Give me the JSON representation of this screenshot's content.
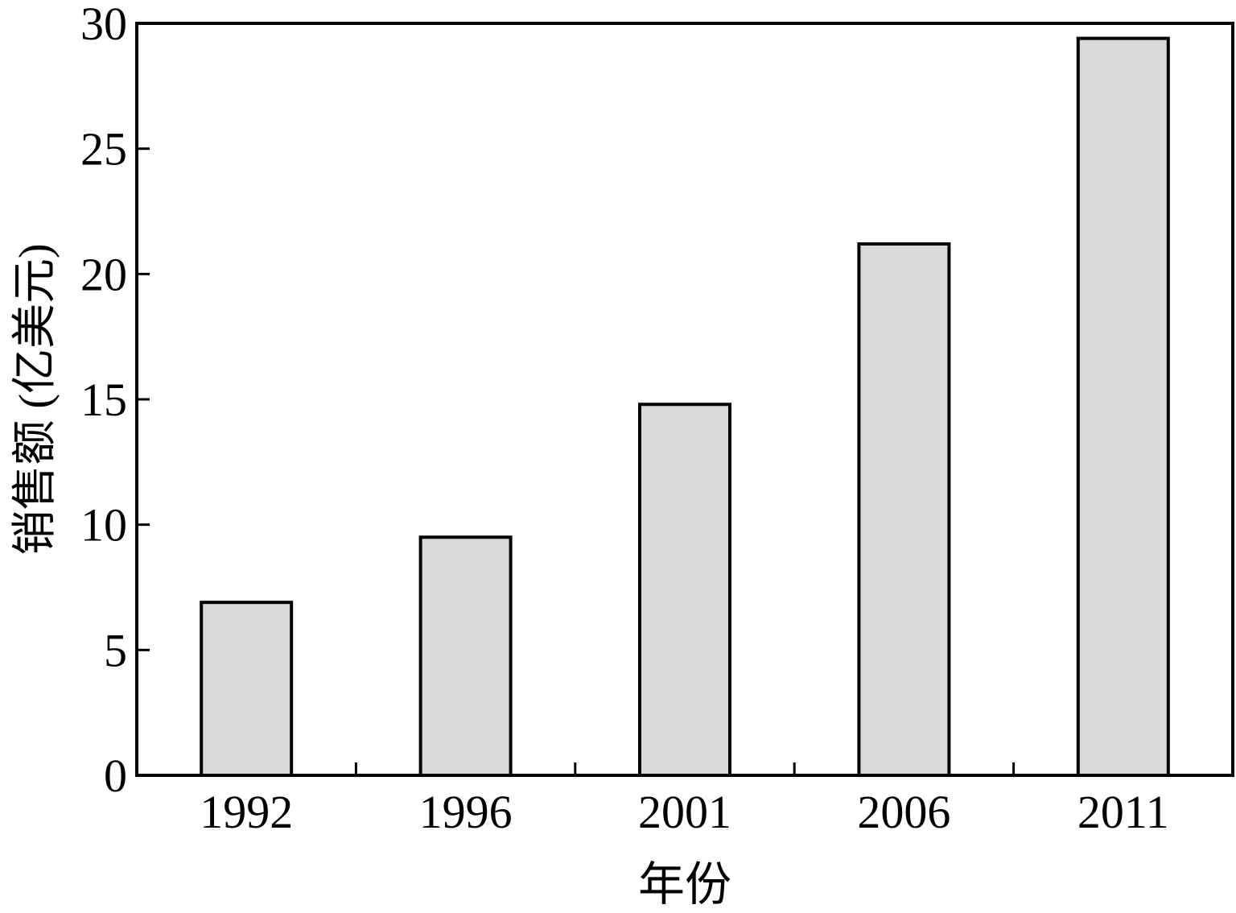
{
  "chart_data": {
    "type": "bar",
    "categories": [
      "1992",
      "1996",
      "2001",
      "2006",
      "2011"
    ],
    "values": [
      6.9,
      9.5,
      14.8,
      21.2,
      29.4
    ],
    "title": "",
    "xlabel": "年份",
    "ylabel": "销售额 (亿美元)",
    "ylim": [
      0,
      30
    ],
    "yticks": [
      "0",
      "5",
      "10",
      "15",
      "20",
      "25",
      "30"
    ],
    "grid": false,
    "bar_color": "#d9d9d9",
    "edge_color": "#000000"
  }
}
